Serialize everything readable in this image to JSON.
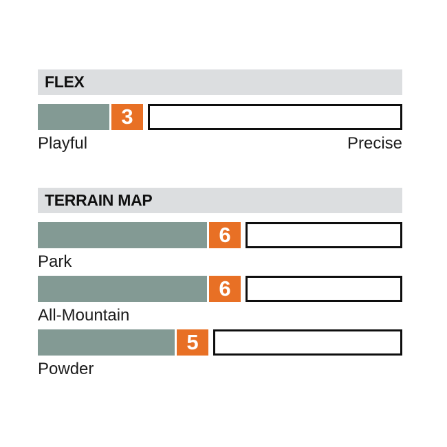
{
  "colors": {
    "fill_gray_green": "#839a94",
    "accent_orange": "#e87025",
    "header_band_bg": "#dcdee0",
    "track_border": "#0e0e0e",
    "label_text": "#1c1c1c",
    "badge_text": "#ffffff"
  },
  "chart_data": [
    {
      "type": "bar",
      "orientation": "horizontal",
      "title": "FLEX",
      "categories": [
        "Flex"
      ],
      "values": [
        3
      ],
      "xlim": [
        0,
        10
      ],
      "endpoint_labels": [
        "Playful",
        "Precise"
      ],
      "legend": "none",
      "grid": false
    },
    {
      "type": "bar",
      "orientation": "horizontal",
      "title": "TERRAIN MAP",
      "categories": [
        "Park",
        "All-Mountain",
        "Powder"
      ],
      "values": [
        6,
        6,
        5
      ],
      "xlim": [
        0,
        10
      ],
      "legend": "none",
      "grid": false
    }
  ]
}
